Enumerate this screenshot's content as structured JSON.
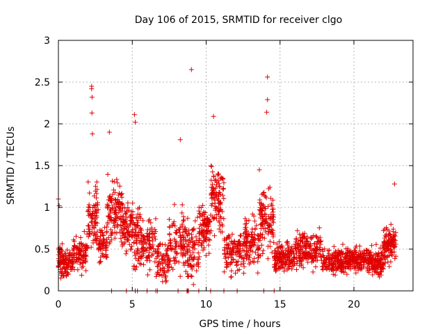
{
  "chart_data": {
    "type": "scatter",
    "title": "Day 106 of 2015, SRMTID for receiver clgo",
    "xlabel": "GPS time / hours",
    "ylabel": "SRMTID / TECUs",
    "xlim": [
      0,
      24
    ],
    "ylim": [
      0,
      3
    ],
    "xticks": [
      0,
      5,
      10,
      15,
      20
    ],
    "yticks": [
      0,
      0.5,
      1,
      1.5,
      2,
      2.5,
      3
    ],
    "xtick_labels": [
      "0",
      "5",
      "10",
      "15",
      "20"
    ],
    "ytick_labels": [
      "0",
      "0.5",
      "1",
      "1.5",
      "2",
      "2.5",
      "3"
    ],
    "grid": true,
    "marker": "+",
    "color": "#e00000",
    "highlighted_points": [
      {
        "x": 0.0,
        "y": 1.1
      },
      {
        "x": 0.05,
        "y": 1.02
      },
      {
        "x": 2.25,
        "y": 2.45
      },
      {
        "x": 2.25,
        "y": 2.42
      },
      {
        "x": 2.28,
        "y": 2.32
      },
      {
        "x": 2.27,
        "y": 2.13
      },
      {
        "x": 2.3,
        "y": 1.88
      },
      {
        "x": 3.45,
        "y": 1.9
      },
      {
        "x": 5.15,
        "y": 2.11
      },
      {
        "x": 5.2,
        "y": 2.02
      },
      {
        "x": 9.0,
        "y": 2.65
      },
      {
        "x": 10.5,
        "y": 2.09
      },
      {
        "x": 14.15,
        "y": 2.56
      },
      {
        "x": 14.15,
        "y": 2.29
      },
      {
        "x": 14.1,
        "y": 2.14
      },
      {
        "x": 13.6,
        "y": 1.45
      },
      {
        "x": 22.75,
        "y": 1.28
      },
      {
        "x": 8.25,
        "y": 1.81
      }
    ],
    "segments": [
      {
        "x0": 0.0,
        "x1": 1.0,
        "mean": 0.35,
        "spread": 0.28,
        "n": 120
      },
      {
        "x0": 1.0,
        "x1": 2.0,
        "mean": 0.45,
        "spread": 0.3,
        "n": 90
      },
      {
        "x0": 2.0,
        "x1": 2.7,
        "mean": 0.9,
        "spread": 0.6,
        "n": 80
      },
      {
        "x0": 2.7,
        "x1": 3.3,
        "mean": 0.55,
        "spread": 0.35,
        "n": 60
      },
      {
        "x0": 3.3,
        "x1": 4.3,
        "mean": 0.95,
        "spread": 0.5,
        "n": 110
      },
      {
        "x0": 4.3,
        "x1": 5.1,
        "mean": 0.75,
        "spread": 0.4,
        "n": 90
      },
      {
        "x0": 5.1,
        "x1": 5.6,
        "mean": 0.6,
        "spread": 0.6,
        "n": 60
      },
      {
        "x0": 5.6,
        "x1": 6.6,
        "mean": 0.55,
        "spread": 0.4,
        "n": 90
      },
      {
        "x0": 6.6,
        "x1": 7.5,
        "mean": 0.35,
        "spread": 0.35,
        "n": 80
      },
      {
        "x0": 7.5,
        "x1": 8.6,
        "mean": 0.6,
        "spread": 0.5,
        "n": 100
      },
      {
        "x0": 8.6,
        "x1": 9.5,
        "mean": 0.5,
        "spread": 0.5,
        "n": 80
      },
      {
        "x0": 9.5,
        "x1": 10.3,
        "mean": 0.75,
        "spread": 0.45,
        "n": 90
      },
      {
        "x0": 10.3,
        "x1": 11.2,
        "mean": 1.1,
        "spread": 0.6,
        "n": 100
      },
      {
        "x0": 11.2,
        "x1": 12.6,
        "mean": 0.45,
        "spread": 0.35,
        "n": 120
      },
      {
        "x0": 12.6,
        "x1": 13.6,
        "mean": 0.6,
        "spread": 0.45,
        "n": 100
      },
      {
        "x0": 13.6,
        "x1": 14.6,
        "mean": 0.85,
        "spread": 0.55,
        "n": 110
      },
      {
        "x0": 14.6,
        "x1": 16.0,
        "mean": 0.4,
        "spread": 0.25,
        "n": 160
      },
      {
        "x0": 16.0,
        "x1": 17.8,
        "mean": 0.5,
        "spread": 0.3,
        "n": 180
      },
      {
        "x0": 17.8,
        "x1": 19.5,
        "mean": 0.35,
        "spread": 0.22,
        "n": 170
      },
      {
        "x0": 19.5,
        "x1": 20.8,
        "mean": 0.38,
        "spread": 0.2,
        "n": 140
      },
      {
        "x0": 20.8,
        "x1": 22.0,
        "mean": 0.35,
        "spread": 0.25,
        "n": 140
      },
      {
        "x0": 22.0,
        "x1": 22.85,
        "mean": 0.55,
        "spread": 0.3,
        "n": 110
      }
    ],
    "zero_points_x": [
      3.6,
      4.6,
      5.2,
      5.35,
      6.0,
      6.6,
      6.7,
      8.1,
      8.7,
      8.75,
      8.8,
      9.5,
      10.3,
      11.2,
      12.1,
      13.9,
      14.6
    ]
  }
}
